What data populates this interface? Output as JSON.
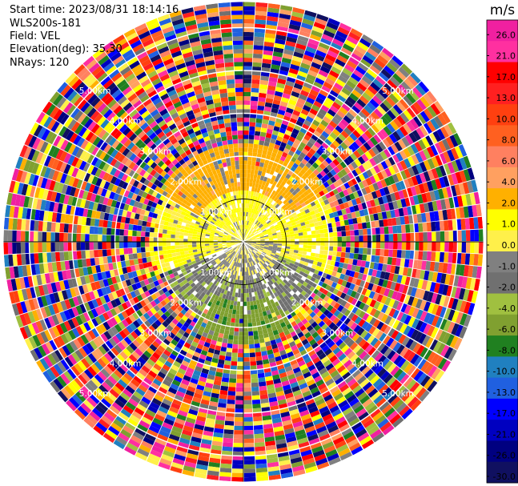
{
  "header": {
    "start_time": "Start time: 2023/08/31 18:14:16",
    "instrument": "WLS200s-181",
    "field": "Field: VEL",
    "elevation": "Elevation(deg): 35.30",
    "nrays": "NRays: 120"
  },
  "chart_data": {
    "type": "heatmap",
    "projection": "polar-ppi",
    "field": "VEL",
    "nrays": 120,
    "range_rings_km": [
      1.0,
      2.0,
      3.0,
      4.0,
      5.0
    ],
    "range_ring_labels": [
      "1.00km",
      "2.00km",
      "3.00km",
      "4.00km",
      "5.00km"
    ],
    "max_range_km": 5.6,
    "colorbar": {
      "unit": "m/s",
      "ticks": [
        "26.0",
        "21.0",
        "17.0",
        "13.0",
        "10.0",
        "8.0",
        "6.0",
        "4.0",
        "2.0",
        "1.0",
        "0.0",
        "-1.0",
        "-2.0",
        "-4.0",
        "-6.0",
        "-8.0",
        "-10.0",
        "-13.0",
        "-17.0",
        "-21.0",
        "-26.0",
        "-30.0"
      ],
      "colors": [
        "#f020a0",
        "#ff30a0",
        "#ff0000",
        "#ff2020",
        "#ff4010",
        "#ff6020",
        "#ff8060",
        "#ffa060",
        "#ffb000",
        "#ffff00",
        "#fff04a",
        "#808080",
        "#707070",
        "#a0c040",
        "#80a030",
        "#208020",
        "#2080c0",
        "#2060e0",
        "#0000ff",
        "#0000c0",
        "#000080",
        "#101060"
      ]
    },
    "spoke_angles_deg": [
      0,
      30,
      60,
      90,
      120,
      150,
      180,
      210,
      240,
      270,
      300,
      330
    ],
    "color_mapping": {
      "min": -30,
      "max": 30
    },
    "data_regions": [
      {
        "name": "near-field-positive",
        "azimuth_range_deg": [
          250,
          110
        ],
        "range_km": [
          0,
          2.2
        ],
        "velocity_ms": 3
      },
      {
        "name": "north-orange",
        "azimuth_range_deg": [
          300,
          60
        ],
        "range_km": [
          1.2,
          2.3
        ],
        "velocity_ms": 7
      },
      {
        "name": "near-field-zero",
        "azimuth_range_deg": [
          90,
          240
        ],
        "range_km": [
          0,
          0.9
        ],
        "velocity_ms": 0
      },
      {
        "name": "south-green",
        "azimuth_range_deg": [
          110,
          250
        ],
        "range_km": [
          0.9,
          2.0
        ],
        "velocity_ms": -5
      },
      {
        "name": "south-blue",
        "azimuth_range_deg": [
          150,
          210
        ],
        "range_km": [
          1.4,
          2.4
        ],
        "velocity_ms": -10
      },
      {
        "name": "outer-noise",
        "azimuth_range_deg": [
          0,
          360
        ],
        "range_km": [
          2.2,
          5.6
        ],
        "velocity_ms": "random"
      }
    ]
  }
}
